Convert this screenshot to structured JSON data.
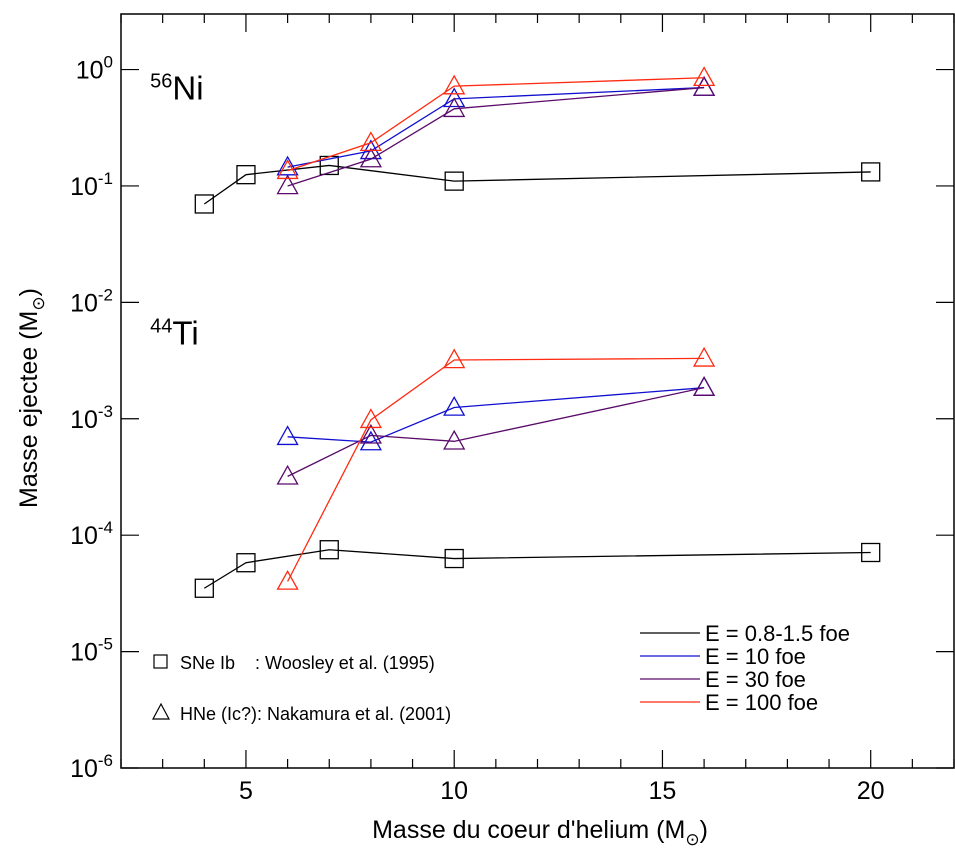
{
  "chart_data": {
    "type": "line",
    "xlabel": "Masse du coeur d'helium (M",
    "xlabel_sub": "⊙",
    "xlabel_end": ")",
    "ylabel": "Masse ejectee (M",
    "ylabel_sub": "⊙",
    "ylabel_end": ")",
    "xlim": [
      2,
      22
    ],
    "ylim": [
      1e-06,
      3.0
    ],
    "yscale": "log",
    "x_ticks": [
      5,
      10,
      15,
      20
    ],
    "x_tick_labels": [
      "5",
      "10",
      "15",
      "20"
    ],
    "y_ticks": [
      1e-06,
      1e-05,
      0.0001,
      0.001,
      0.01,
      0.1,
      1
    ],
    "y_tick_labels": [
      {
        "base": "10",
        "exp": "-6"
      },
      {
        "base": "10",
        "exp": "-5"
      },
      {
        "base": "10",
        "exp": "-4"
      },
      {
        "base": "10",
        "exp": "-3"
      },
      {
        "base": "10",
        "exp": "-2"
      },
      {
        "base": "10",
        "exp": "-1"
      },
      {
        "base": "10",
        "exp": "0"
      }
    ],
    "annotations": [
      {
        "sup": "56",
        "text": "Ni",
        "x": 2.7,
        "y": 0.7
      },
      {
        "sup": "44",
        "text": "Ti",
        "x": 2.7,
        "y": 0.0055
      }
    ],
    "series": [
      {
        "name": "E = 0.8-1.5 foe",
        "color": "#000000",
        "marker": "square",
        "group": "Ni",
        "x": [
          4,
          5,
          7,
          10,
          20
        ],
        "y": [
          0.07,
          0.125,
          0.15,
          0.11,
          0.132
        ]
      },
      {
        "name": "E = 10 foe",
        "color": "#1010d0",
        "marker": "triangle",
        "group": "Ni",
        "x": [
          6,
          8,
          10,
          16
        ],
        "y": [
          0.145,
          0.2,
          0.56,
          0.7
        ]
      },
      {
        "name": "E = 30 foe",
        "color": "#5a0a6a",
        "marker": "triangle",
        "group": "Ni",
        "x": [
          6,
          8,
          10,
          16
        ],
        "y": [
          0.1,
          0.17,
          0.46,
          0.7
        ]
      },
      {
        "name": "E = 100 foe",
        "color": "#ff2a10",
        "marker": "triangle",
        "group": "Ni",
        "x": [
          6,
          8,
          10,
          16
        ],
        "y": [
          0.135,
          0.235,
          0.72,
          0.85
        ]
      },
      {
        "name": "E = 0.8-1.5 foe",
        "color": "#000000",
        "marker": "square",
        "group": "Ti",
        "x": [
          4,
          5,
          7,
          10,
          20
        ],
        "y": [
          3.5e-05,
          5.8e-05,
          7.5e-05,
          6.3e-05,
          7.1e-05
        ]
      },
      {
        "name": "E = 10 foe",
        "color": "#1010d0",
        "marker": "triangle",
        "group": "Ti",
        "x": [
          6,
          8,
          10,
          16
        ],
        "y": [
          0.0007,
          0.00063,
          0.00125,
          0.00185
        ]
      },
      {
        "name": "E = 30 foe",
        "color": "#5a0a6a",
        "marker": "triangle",
        "group": "Ti",
        "x": [
          6,
          8,
          10,
          16
        ],
        "y": [
          0.00032,
          0.00072,
          0.00064,
          0.00185
        ]
      },
      {
        "name": "E = 100 foe",
        "color": "#ff2a10",
        "marker": "triangle",
        "group": "Ti",
        "x": [
          6,
          8,
          10,
          16
        ],
        "y": [
          4e-05,
          0.00098,
          0.0032,
          0.0033
        ]
      }
    ],
    "legend": {
      "placement": "bottom-right",
      "entries": [
        {
          "label": "E = 0.8-1.5 foe",
          "color": "#000000"
        },
        {
          "label": "E = 10 foe",
          "color": "#1010d0"
        },
        {
          "label": "E = 30 foe",
          "color": "#5a0a6a"
        },
        {
          "label": "E = 100 foe",
          "color": "#ff2a10"
        }
      ]
    },
    "marker_legend": {
      "placement": "bottom-left",
      "entries": [
        {
          "marker": "square",
          "label": "SNe Ib    : Woosley et al. (1995)"
        },
        {
          "marker": "triangle",
          "label": "HNe (Ic?): Nakamura et al. (2001)"
        }
      ]
    }
  }
}
